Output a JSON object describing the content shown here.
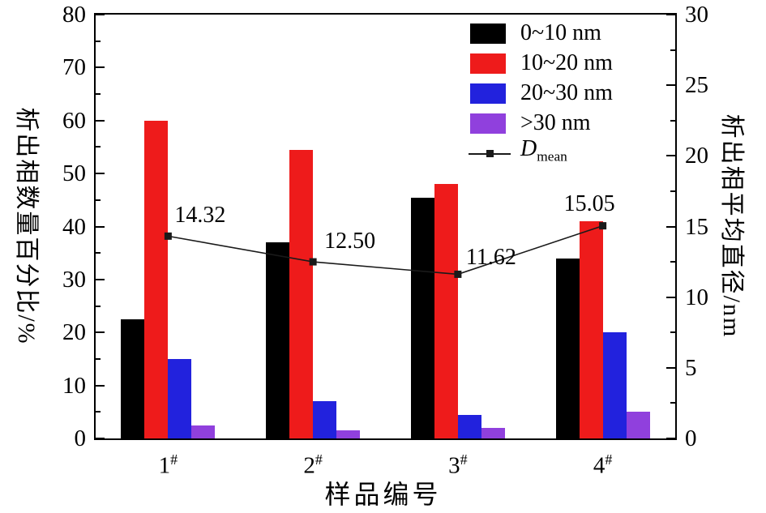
{
  "chart_data": {
    "type": "bar",
    "title": "",
    "xlabel": "样品编号",
    "ylabel_left": "析出相数量百分比/%",
    "ylabel_right": "析出相平均直径/nm",
    "categories": [
      "1#",
      "2#",
      "3#",
      "4#"
    ],
    "y_left_axis": {
      "min": 0,
      "max": 80,
      "major": 10,
      "minor": 5,
      "tick_labels": [
        "0",
        "10",
        "20",
        "30",
        "40",
        "50",
        "60",
        "70",
        "80"
      ]
    },
    "y_right_axis": {
      "min": 0,
      "max": 30,
      "major": 5,
      "minor": 2.5,
      "tick_labels": [
        "0",
        "5",
        "10",
        "15",
        "20",
        "25",
        "30"
      ]
    },
    "grid": false,
    "legend_position": "top-right-inside",
    "series": [
      {
        "name": "0~10 nm",
        "type": "bar",
        "color": "#000000",
        "axis": "left",
        "values": [
          22.5,
          37,
          45.5,
          34
        ]
      },
      {
        "name": "10~20 nm",
        "type": "bar",
        "color": "#ee1b1b",
        "axis": "left",
        "values": [
          60,
          54.5,
          48,
          41
        ]
      },
      {
        "name": "20~30 nm",
        "type": "bar",
        "color": "#2222dd",
        "axis": "left",
        "values": [
          15,
          7,
          4.5,
          20
        ]
      },
      {
        "name": ">30 nm",
        "type": "bar",
        "color": "#9040dd",
        "axis": "left",
        "values": [
          2.5,
          1.5,
          2,
          5
        ]
      },
      {
        "name": "Dmean",
        "legend_main": "D",
        "legend_sub": "mean",
        "type": "line",
        "color": "#1a1a1a",
        "axis": "right",
        "values": [
          14.32,
          12.5,
          11.62,
          15.05
        ],
        "point_labels": [
          "14.32",
          "12.50",
          "11.62",
          "15.05"
        ]
      }
    ]
  }
}
